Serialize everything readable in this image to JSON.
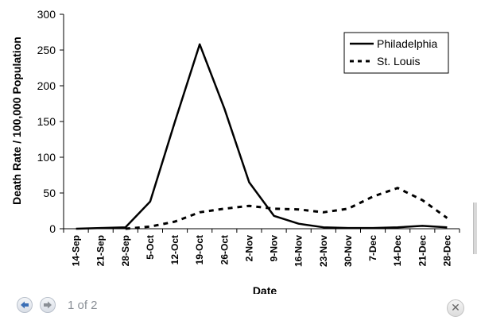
{
  "chart_data": {
    "type": "line",
    "title": "",
    "xlabel": "Date",
    "ylabel": "Death Rate / 100,000 Population",
    "ylim": [
      0,
      300
    ],
    "yticks": [
      0,
      50,
      100,
      150,
      200,
      250,
      300
    ],
    "grid": false,
    "legend_position": "top-right",
    "categories": [
      "14-Sep",
      "21-Sep",
      "28-Sep",
      "5-Oct",
      "12-Oct",
      "19-Oct",
      "26-Oct",
      "2-Nov",
      "9-Nov",
      "16-Nov",
      "23-Nov",
      "30-Nov",
      "7-Dec",
      "14-Dec",
      "21-Dec",
      "28-Dec"
    ],
    "series": [
      {
        "name": "Philadelphia",
        "style": "solid",
        "points": [
          {
            "x": "14-Sep",
            "y": 0
          },
          {
            "x": "21-Sep",
            "y": 1
          },
          {
            "x": "28-Sep",
            "y": 2
          },
          {
            "x": "5-Oct",
            "y": 38
          },
          {
            "x": "12-Oct",
            "y": 150
          },
          {
            "x": "19-Oct",
            "y": 258
          },
          {
            "x": "26-Oct",
            "y": 168
          },
          {
            "x": "2-Nov",
            "y": 65
          },
          {
            "x": "9-Nov",
            "y": 18
          },
          {
            "x": "16-Nov",
            "y": 7
          },
          {
            "x": "23-Nov",
            "y": 2
          },
          {
            "x": "30-Nov",
            "y": 1
          },
          {
            "x": "7-Dec",
            "y": 1
          },
          {
            "x": "14-Dec",
            "y": 2
          },
          {
            "x": "21-Dec",
            "y": 4
          },
          {
            "x": "28-Dec",
            "y": 2
          }
        ]
      },
      {
        "name": "St. Louis",
        "style": "dashed",
        "points": [
          {
            "x": "28-Sep",
            "y": 0
          },
          {
            "x": "5-Oct",
            "y": 3
          },
          {
            "x": "12-Oct",
            "y": 10
          },
          {
            "x": "19-Oct",
            "y": 23
          },
          {
            "x": "26-Oct",
            "y": 28
          },
          {
            "x": "2-Nov",
            "y": 32
          },
          {
            "x": "9-Nov",
            "y": 28
          },
          {
            "x": "16-Nov",
            "y": 27
          },
          {
            "x": "23-Nov",
            "y": 23
          },
          {
            "x": "30-Nov",
            "y": 28
          },
          {
            "x": "7-Dec",
            "y": 45
          },
          {
            "x": "14-Dec",
            "y": 57
          },
          {
            "x": "21-Dec",
            "y": 40
          },
          {
            "x": "28-Dec",
            "y": 15
          }
        ]
      }
    ]
  },
  "pager": {
    "indicator": "1 of 2",
    "prev_icon": "arrow-left-icon",
    "next_icon": "arrow-right-icon",
    "close_icon": "close-icon"
  },
  "colors": {
    "line": "#000000",
    "nav_arrow": "#3b6fb6"
  }
}
